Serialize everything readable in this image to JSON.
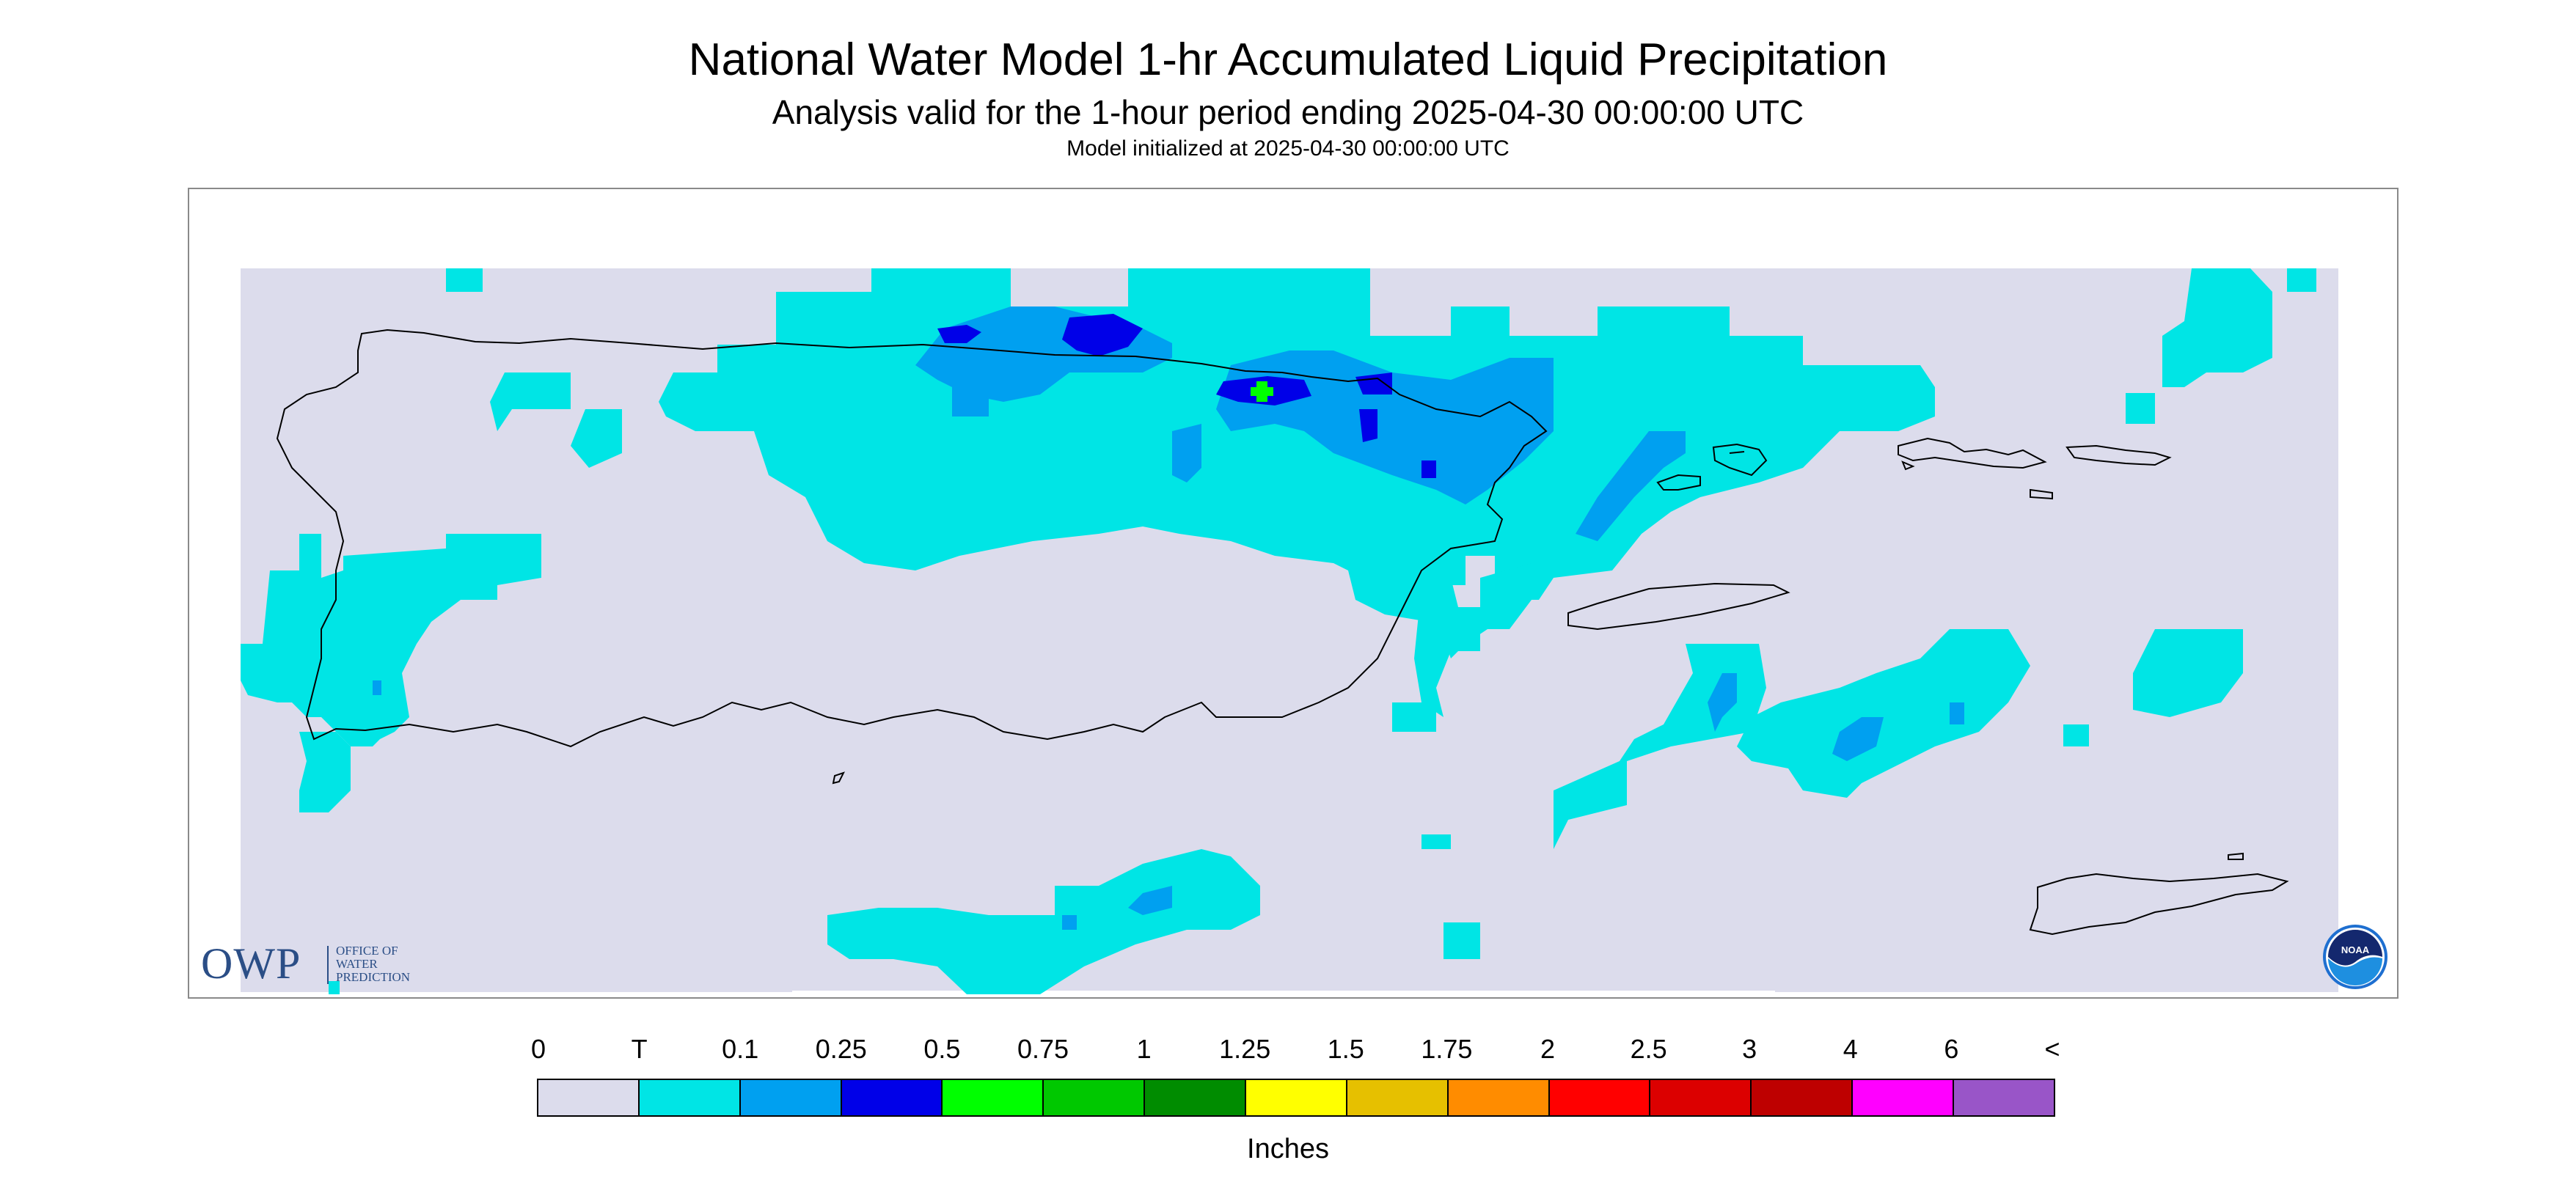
{
  "title": "National Water Model 1-hr Accumulated Liquid Precipitation",
  "subtitle": "Analysis valid for the 1-hour period ending 2025-04-30 00:00:00 UTC",
  "init_line": "Model initialized at 2025-04-30 00:00:00 UTC",
  "owp_logo": {
    "letters": "OWP",
    "line1": "OFFICE OF",
    "line2": "WATER",
    "line3": "PREDICTION"
  },
  "noaa_logo": {
    "text": "NOAA"
  },
  "legend": {
    "units": "Inches",
    "labels": [
      "0",
      "T",
      "0.1",
      "0.25",
      "0.5",
      "0.75",
      "1",
      "1.25",
      "1.5",
      "1.75",
      "2",
      "2.5",
      "3",
      "4",
      "6",
      "<"
    ],
    "colors": [
      "#dcdcec",
      "#00e5e5",
      "#00a0f0",
      "#0000e8",
      "#00ff00",
      "#00c800",
      "#008c00",
      "#ffff00",
      "#e6c000",
      "#ff8c00",
      "#ff0000",
      "#dc0000",
      "#be0000",
      "#ff00ff",
      "#9955c8"
    ]
  },
  "map": {
    "background_color": "#dcdcec",
    "outline_color": "#000000"
  }
}
